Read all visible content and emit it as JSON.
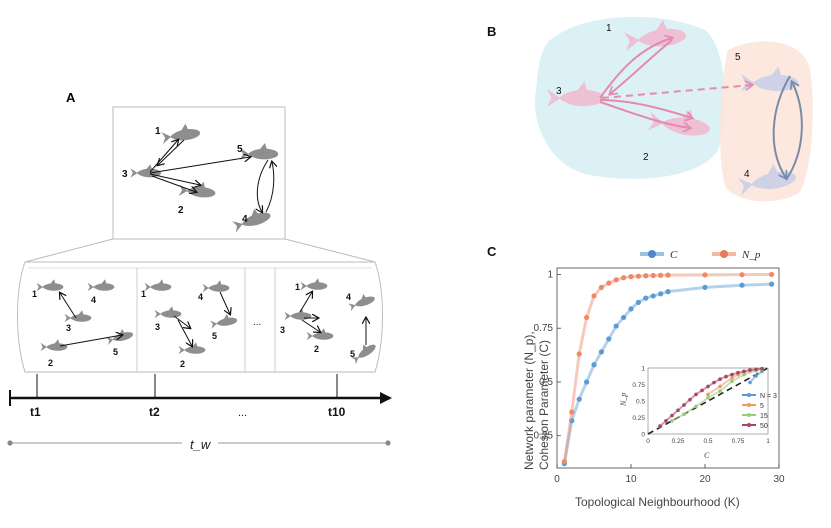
{
  "panel_a": {
    "label": "A",
    "top_fish": [
      "1",
      "2",
      "3",
      "4",
      "5"
    ],
    "frames": [
      {
        "fish": [
          "1",
          "2",
          "3",
          "4",
          "5"
        ]
      },
      {
        "fish": [
          "1",
          "2",
          "3",
          "4",
          "5"
        ]
      },
      {
        "fish": [
          "1",
          "2",
          "3",
          "4",
          "5"
        ]
      }
    ],
    "ellipsis": "...",
    "timeline": {
      "t1": "t1",
      "t2": "t2",
      "dots": "...",
      "t10": "t10",
      "window": "t_w"
    }
  },
  "panel_b": {
    "label": "B",
    "fish": [
      "1",
      "2",
      "3",
      "4",
      "5"
    ]
  },
  "panel_c": {
    "label": "C",
    "legend": [
      "C",
      "N_p"
    ],
    "ylabel_line1": "Network parameter (N_p),",
    "ylabel_line2": "Cohesion Parameter (C)",
    "xlabel": "Topological Neighbourhood (K)",
    "inset": {
      "ylabel": "N_p",
      "xlabel": "C",
      "legend": [
        "N = 3",
        "5",
        "15",
        "50"
      ],
      "ticks_x": [
        "0",
        "0.25",
        "0.5",
        "0.75",
        "1"
      ],
      "ticks_y": [
        "0",
        "0.25",
        "0.5",
        "0.75",
        "1"
      ]
    }
  },
  "chart_data": {
    "type": "line",
    "title": "",
    "xlabel": "Topological Neighbourhood (K)",
    "ylabel": "Network parameter (Np), Cohesion Parameter (C)",
    "xlim": [
      0,
      30
    ],
    "ylim": [
      0.1,
      1.03
    ],
    "xticks": [
      "0",
      "10",
      "20",
      "30"
    ],
    "yticks": [
      "0.25",
      "0.5",
      "0.75",
      "1"
    ],
    "series": [
      {
        "name": "C",
        "color": "#5b9bd5",
        "x": [
          1,
          2,
          3,
          4,
          5,
          6,
          7,
          8,
          9,
          10,
          11,
          12,
          13,
          14,
          15,
          20,
          25,
          29
        ],
        "y": [
          0.12,
          0.32,
          0.42,
          0.5,
          0.58,
          0.64,
          0.7,
          0.76,
          0.8,
          0.84,
          0.87,
          0.89,
          0.9,
          0.91,
          0.92,
          0.94,
          0.95,
          0.955
        ]
      },
      {
        "name": "N_p",
        "color": "#ee8866",
        "x": [
          1,
          2,
          3,
          4,
          5,
          6,
          7,
          8,
          9,
          10,
          11,
          12,
          13,
          14,
          15,
          20,
          25,
          29
        ],
        "y": [
          0.13,
          0.36,
          0.63,
          0.8,
          0.9,
          0.94,
          0.96,
          0.975,
          0.985,
          0.99,
          0.992,
          0.994,
          0.995,
          0.996,
          0.997,
          0.998,
          0.999,
          1.0
        ]
      }
    ]
  },
  "inset_chart_data": {
    "type": "line",
    "xlim": [
      0,
      1
    ],
    "ylim": [
      0,
      1
    ],
    "series": [
      {
        "name": "N = 3",
        "color": "#5b9bd5",
        "x": [
          0.85,
          0.9,
          0.95
        ],
        "y": [
          0.78,
          0.88,
          0.95
        ]
      },
      {
        "name": "5",
        "color": "#ee9966",
        "x": [
          0.5,
          0.6,
          0.7,
          0.75,
          0.8,
          0.85,
          0.9,
          0.95
        ],
        "y": [
          0.6,
          0.72,
          0.85,
          0.9,
          0.94,
          0.96,
          0.98,
          0.99
        ]
      },
      {
        "name": "15",
        "color": "#99cc77",
        "x": [
          0.2,
          0.3,
          0.4,
          0.5,
          0.6,
          0.7,
          0.8,
          0.9,
          0.95
        ],
        "y": [
          0.2,
          0.3,
          0.42,
          0.55,
          0.65,
          0.8,
          0.9,
          0.96,
          0.98
        ]
      },
      {
        "name": "50",
        "color": "#aa4466",
        "x": [
          0.1,
          0.15,
          0.2,
          0.25,
          0.3,
          0.35,
          0.4,
          0.45,
          0.5,
          0.55,
          0.6,
          0.65,
          0.7,
          0.75,
          0.8,
          0.85,
          0.9,
          0.95
        ],
        "y": [
          0.12,
          0.2,
          0.28,
          0.36,
          0.44,
          0.52,
          0.6,
          0.66,
          0.72,
          0.78,
          0.83,
          0.87,
          0.9,
          0.93,
          0.95,
          0.97,
          0.98,
          0.99
        ]
      }
    ]
  }
}
